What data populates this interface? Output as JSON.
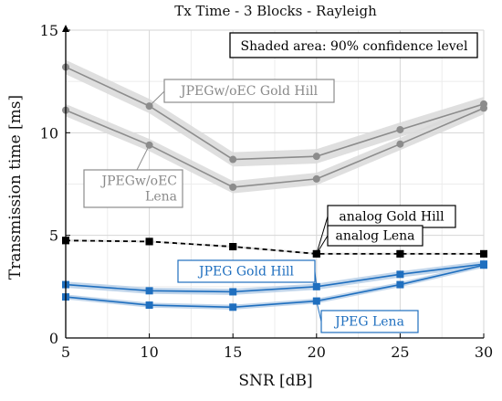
{
  "chart_data": {
    "type": "line",
    "title": "Tx Time - 3 Blocks - Rayleigh",
    "xlabel": "SNR [dB]",
    "ylabel": "Transmission time [ms]",
    "xlim": [
      5,
      30
    ],
    "ylim": [
      0,
      15
    ],
    "xticks": [
      5,
      10,
      15,
      20,
      25,
      30
    ],
    "yticks": [
      0,
      5,
      10,
      15
    ],
    "grid": true,
    "x": [
      5,
      10,
      15,
      20,
      25,
      30
    ],
    "annotation_box": "Shaded area: 90% confidence level",
    "series": [
      {
        "name": "JPEGw/oEC Gold Hill",
        "label_lines": [
          "JPEGw/oEC Gold Hill"
        ],
        "color": "#8c8c8c",
        "band_color": "#d9d9d9",
        "marker": "circle",
        "dashed": false,
        "values": [
          13.2,
          11.3,
          8.7,
          8.85,
          10.15,
          11.4
        ],
        "ci": 0.35
      },
      {
        "name": "JPEGw/oEC Lena",
        "label_lines": [
          "JPEGw/oEC",
          "Lena"
        ],
        "color": "#8c8c8c",
        "band_color": "#d9d9d9",
        "marker": "circle",
        "dashed": false,
        "values": [
          11.1,
          9.4,
          7.35,
          7.75,
          9.45,
          11.2
        ],
        "ci": 0.3
      },
      {
        "name": "analog Gold Hill",
        "label_lines": [
          "analog Gold Hill"
        ],
        "color": "#000000",
        "band_color": "#e0e0e0",
        "marker": "square",
        "dashed": true,
        "values": [
          4.75,
          4.7,
          4.45,
          4.1,
          4.1,
          4.1
        ],
        "ci": 0.05
      },
      {
        "name": "analog Lena",
        "label_lines": [
          "analog Lena"
        ],
        "color": "#000000",
        "band_color": "#e0e0e0",
        "marker": "square",
        "dashed": true,
        "values": [
          4.75,
          4.7,
          4.45,
          4.1,
          4.1,
          4.1
        ],
        "ci": 0.05
      },
      {
        "name": "JPEG Gold Hill",
        "label_lines": [
          "JPEG Gold Hill"
        ],
        "color": "#1f6fbf",
        "band_color": "#b7cfe8",
        "marker": "square",
        "dashed": false,
        "values": [
          2.6,
          2.3,
          2.25,
          2.5,
          3.1,
          3.6
        ],
        "ci": 0.15
      },
      {
        "name": "JPEG Lena",
        "label_lines": [
          "JPEG Lena"
        ],
        "color": "#1f6fbf",
        "band_color": "#b7cfe8",
        "marker": "square",
        "dashed": false,
        "values": [
          2.0,
          1.6,
          1.5,
          1.8,
          2.6,
          3.55
        ],
        "ci": 0.12
      }
    ]
  }
}
